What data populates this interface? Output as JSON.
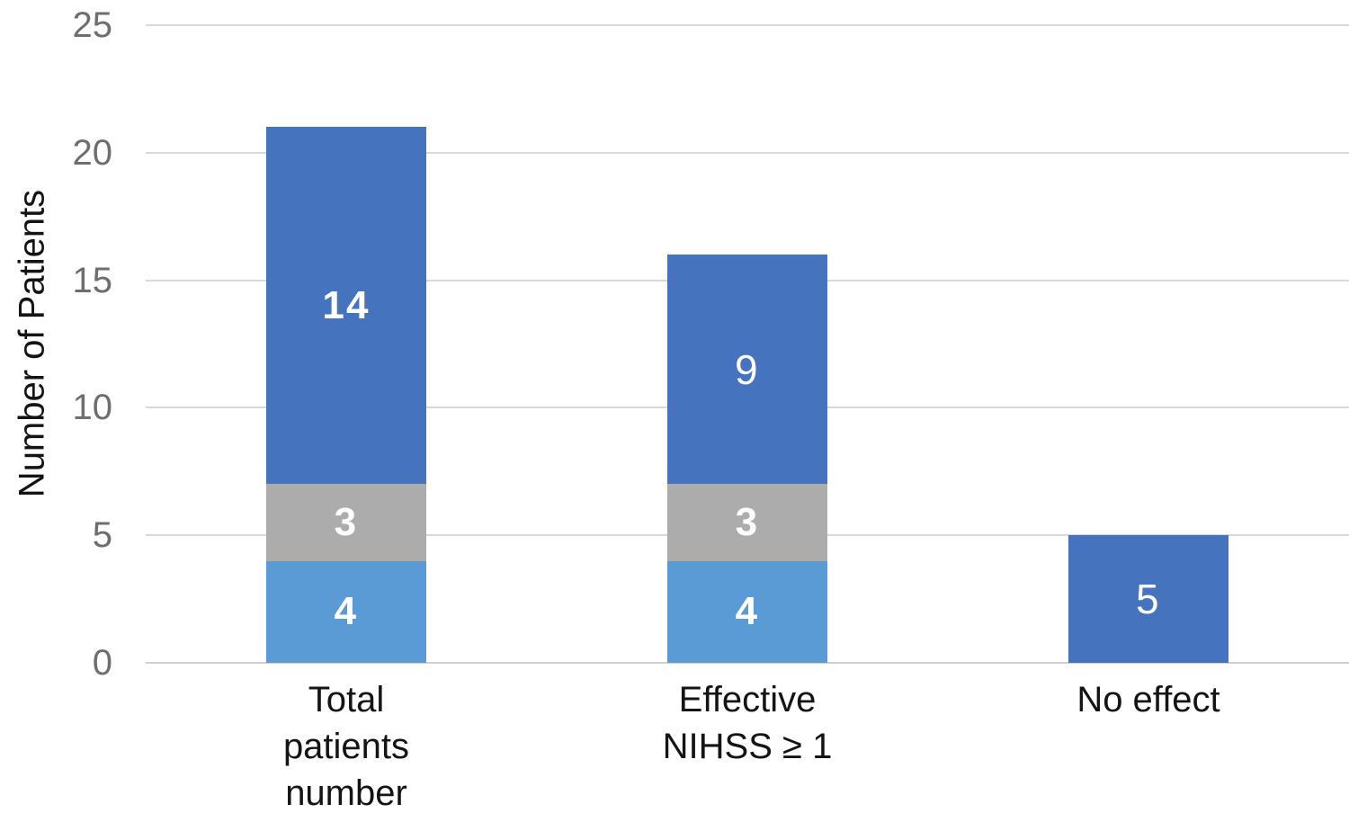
{
  "chart_data": {
    "type": "bar",
    "stacked": true,
    "title": "",
    "xlabel": "",
    "ylabel": "Number of Patients",
    "ylim": [
      0,
      25
    ],
    "yticks": [
      0,
      5,
      10,
      15,
      20,
      25
    ],
    "grid": "horizontal",
    "legend": "none",
    "categories": [
      "Total\npatients\nnumber",
      "Effective\nNIHSS ≥ 1",
      "No effect"
    ],
    "series": [
      {
        "name": "series-1",
        "color": "#5B9BD5",
        "values": [
          4,
          4,
          0
        ],
        "label_bold": [
          true,
          true,
          false
        ]
      },
      {
        "name": "series-2",
        "color": "#ACACAC",
        "values": [
          3,
          3,
          0
        ],
        "label_bold": [
          true,
          true,
          false
        ]
      },
      {
        "name": "series-3",
        "color": "#4673BD",
        "values": [
          14,
          9,
          5
        ],
        "label_bold": [
          true,
          false,
          false
        ]
      }
    ],
    "data_label_color": "#FFFFFF"
  },
  "axis_style": {
    "tick_color": "#6E6E6E",
    "text_color": "#141414",
    "gridline_color": "#D9D9D9"
  }
}
